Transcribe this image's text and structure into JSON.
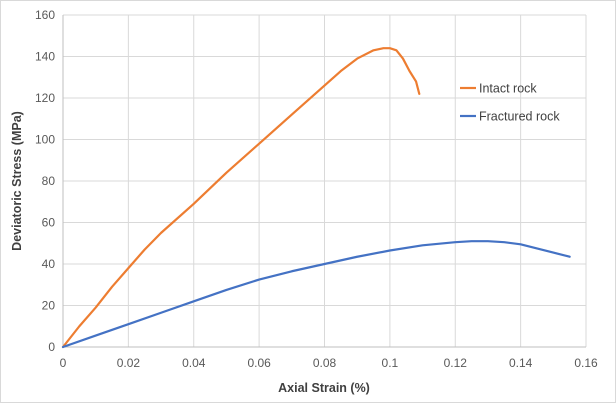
{
  "chart_data": {
    "type": "line",
    "xlabel": "Axial Strain (%)",
    "ylabel": "Deviatoric Stress (MPa)",
    "xlim": [
      0,
      0.16
    ],
    "ylim": [
      0,
      160
    ],
    "x_ticks": [
      "0",
      "0.02",
      "0.04",
      "0.06",
      "0.08",
      "0.1",
      "0.12",
      "0.14",
      "0.16"
    ],
    "y_ticks": [
      "0",
      "20",
      "40",
      "60",
      "80",
      "100",
      "120",
      "140",
      "160"
    ],
    "grid": true,
    "legend_position": "right",
    "series": [
      {
        "name": "Intact rock",
        "color": "#ED7D31",
        "x": [
          0,
          0.005,
          0.01,
          0.015,
          0.02,
          0.025,
          0.03,
          0.04,
          0.05,
          0.06,
          0.07,
          0.08,
          0.085,
          0.09,
          0.095,
          0.098,
          0.1,
          0.102,
          0.104,
          0.106,
          0.108,
          0.109
        ],
        "y": [
          0,
          10,
          19,
          29,
          38,
          47,
          55,
          69,
          84,
          98,
          112,
          126,
          133,
          139,
          143,
          144,
          144,
          143,
          139,
          133,
          128,
          122
        ]
      },
      {
        "name": "Fractured rock",
        "color": "#4472C4",
        "x": [
          0,
          0.01,
          0.02,
          0.03,
          0.04,
          0.05,
          0.06,
          0.07,
          0.08,
          0.09,
          0.1,
          0.11,
          0.12,
          0.125,
          0.13,
          0.135,
          0.14,
          0.145,
          0.15,
          0.155
        ],
        "y": [
          0,
          5.5,
          11,
          16.5,
          22,
          27.5,
          32.5,
          36.5,
          40,
          43.5,
          46.5,
          49,
          50.5,
          51,
          51,
          50.5,
          49.5,
          47.5,
          45.5,
          43.5
        ]
      }
    ]
  }
}
